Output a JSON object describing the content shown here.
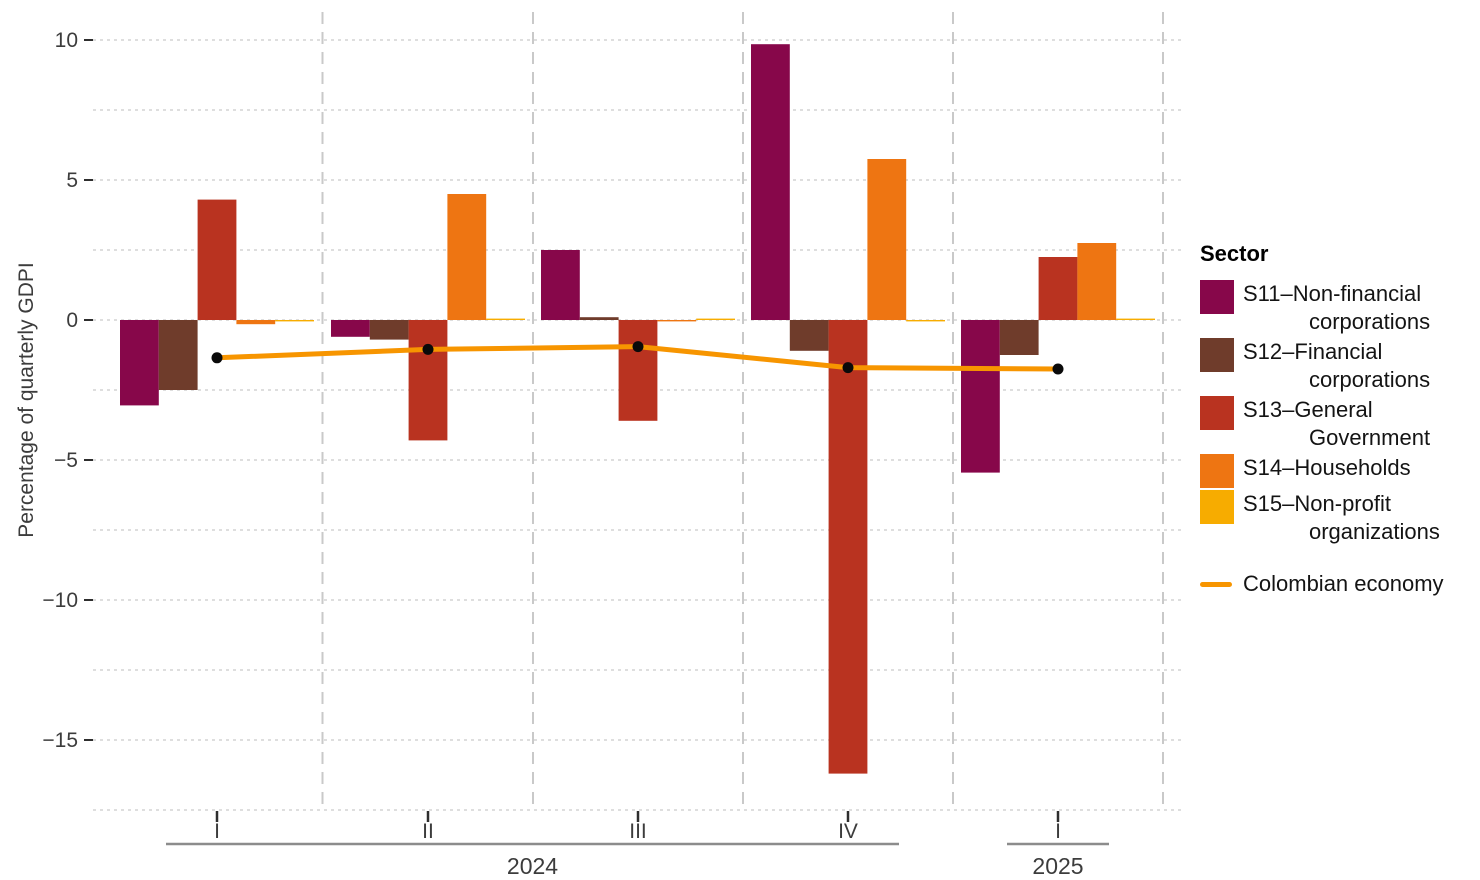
{
  "style": {
    "background": "#ffffff",
    "h_grid_color": "#d9d9d9",
    "v_grid_color": "#c9c9c9",
    "axis_text_color": "#3c3c3c",
    "tick_color": "#2e2e2e",
    "year_line_color": "#8c8c8c",
    "point_color": "#0a0a0a"
  },
  "chart_data": {
    "type": "bar",
    "title": "",
    "xlabel": "",
    "ylabel": "Percentage of quarterly GDPI",
    "categories": [
      "I",
      "II",
      "III",
      "IV",
      "I"
    ],
    "year_groups": [
      {
        "label": "2024",
        "from": 0,
        "to": 3
      },
      {
        "label": "2025",
        "from": 4,
        "to": 4
      }
    ],
    "series": [
      {
        "name": "S11–Non-financial corporations",
        "color": "#87074a",
        "values": [
          -3.05,
          -0.6,
          2.5,
          9.85,
          -5.45
        ]
      },
      {
        "name": "S12–Financial corporations",
        "color": "#6f3c2b",
        "values": [
          -2.5,
          -0.7,
          0.1,
          -1.1,
          -1.25
        ]
      },
      {
        "name": "S13–General Government",
        "color": "#b93320",
        "values": [
          4.3,
          -4.3,
          -3.6,
          -16.2,
          2.25
        ]
      },
      {
        "name": "S14–Households",
        "color": "#ee7512",
        "values": [
          -0.15,
          4.5,
          -0.05,
          5.75,
          2.75
        ]
      },
      {
        "name": "S15–Non-profit organizations",
        "color": "#f7ac00",
        "values": [
          -0.05,
          0.05,
          0.05,
          -0.05,
          0.05
        ]
      }
    ],
    "line_series": {
      "name": "Colombian economy",
      "color": "#f79500",
      "values": [
        -1.35,
        -1.05,
        -0.95,
        -1.7,
        -1.75
      ]
    },
    "ylim": [
      -17.5,
      10.5
    ],
    "grid": {
      "horizontal_step": 2.5,
      "horizontal_on": true,
      "vertical_between_groups": true
    },
    "legend_position": "right"
  },
  "y_axis": {
    "title": "Percentage of quarterly GDPI",
    "tick_values": [
      10,
      5,
      0,
      -5,
      -10,
      -15
    ],
    "tick_labels": [
      "10",
      "5",
      "0",
      "−5",
      "−10",
      "−15"
    ]
  },
  "legend": {
    "title": "Sector",
    "items": [
      {
        "lines": [
          "S11–Non-financial",
          "corporations"
        ]
      },
      {
        "lines": [
          "S12–Financial",
          "corporations"
        ]
      },
      {
        "lines": [
          "S13–General",
          "Government"
        ]
      },
      {
        "lines": [
          "S14–Households"
        ]
      },
      {
        "lines": [
          "S15–Non-profit",
          "organizations"
        ]
      }
    ],
    "line_item": {
      "label": "Colombian economy"
    }
  }
}
